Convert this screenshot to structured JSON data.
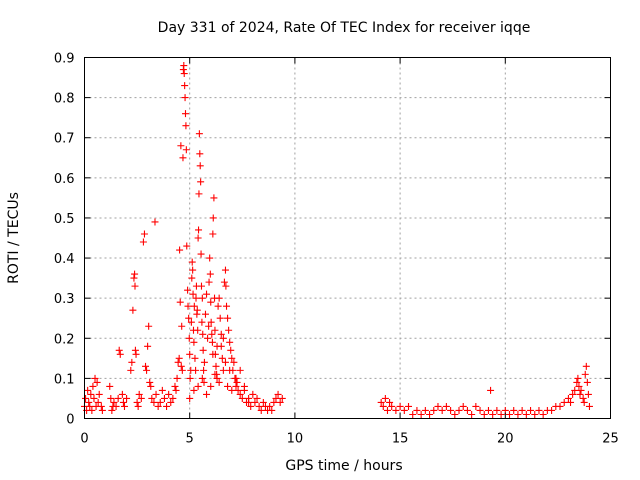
{
  "chart_data": {
    "type": "scatter",
    "title": "Day 331 of 2024, Rate Of TEC Index for receiver iqqe",
    "xlabel": "GPS time / hours",
    "ylabel": "ROTI / TECUs",
    "xlim": [
      0,
      25
    ],
    "ylim": [
      0,
      0.9
    ],
    "x_ticks": [
      0,
      5,
      10,
      15,
      20,
      25
    ],
    "x_tick_labels": [
      "0",
      "5",
      "10",
      "15",
      "20",
      "25"
    ],
    "y_ticks": [
      0,
      0.1,
      0.2,
      0.3,
      0.4,
      0.5,
      0.6,
      0.7,
      0.8,
      0.9
    ],
    "y_tick_labels": [
      "0",
      "0.1",
      "0.2",
      "0.3",
      "0.4",
      "0.5",
      "0.6",
      "0.7",
      "0.8",
      "0.9"
    ],
    "grid": true,
    "marker": "+",
    "color": "#ff0000",
    "series": [
      {
        "name": "ROTI",
        "points": [
          [
            0.0,
            0.03
          ],
          [
            0.05,
            0.05
          ],
          [
            0.1,
            0.02
          ],
          [
            0.15,
            0.07
          ],
          [
            0.2,
            0.04
          ],
          [
            0.25,
            0.03
          ],
          [
            0.3,
            0.06
          ],
          [
            0.35,
            0.02
          ],
          [
            0.4,
            0.08
          ],
          [
            0.45,
            0.05
          ],
          [
            0.5,
            0.1
          ],
          [
            0.55,
            0.03
          ],
          [
            0.6,
            0.09
          ],
          [
            0.65,
            0.04
          ],
          [
            0.7,
            0.06
          ],
          [
            0.8,
            0.03
          ],
          [
            0.85,
            0.02
          ],
          [
            1.2,
            0.08
          ],
          [
            1.25,
            0.05
          ],
          [
            1.3,
            0.02
          ],
          [
            1.35,
            0.03
          ],
          [
            1.4,
            0.04
          ],
          [
            1.5,
            0.03
          ],
          [
            1.6,
            0.05
          ],
          [
            1.65,
            0.17
          ],
          [
            1.7,
            0.16
          ],
          [
            1.8,
            0.06
          ],
          [
            1.85,
            0.04
          ],
          [
            1.9,
            0.03
          ],
          [
            2.0,
            0.05
          ],
          [
            2.2,
            0.12
          ],
          [
            2.25,
            0.14
          ],
          [
            2.3,
            0.27
          ],
          [
            2.35,
            0.35
          ],
          [
            2.38,
            0.36
          ],
          [
            2.4,
            0.33
          ],
          [
            2.42,
            0.17
          ],
          [
            2.45,
            0.16
          ],
          [
            2.5,
            0.04
          ],
          [
            2.55,
            0.03
          ],
          [
            2.6,
            0.06
          ],
          [
            2.7,
            0.05
          ],
          [
            2.8,
            0.44
          ],
          [
            2.85,
            0.46
          ],
          [
            2.9,
            0.13
          ],
          [
            2.95,
            0.12
          ],
          [
            3.0,
            0.18
          ],
          [
            3.05,
            0.23
          ],
          [
            3.1,
            0.09
          ],
          [
            3.15,
            0.08
          ],
          [
            3.2,
            0.05
          ],
          [
            3.3,
            0.04
          ],
          [
            3.35,
            0.49
          ],
          [
            3.4,
            0.06
          ],
          [
            3.5,
            0.03
          ],
          [
            3.6,
            0.04
          ],
          [
            3.7,
            0.07
          ],
          [
            3.8,
            0.05
          ],
          [
            3.9,
            0.03
          ],
          [
            4.0,
            0.06
          ],
          [
            4.1,
            0.04
          ],
          [
            4.2,
            0.05
          ],
          [
            4.3,
            0.08
          ],
          [
            4.35,
            0.07
          ],
          [
            4.4,
            0.1
          ],
          [
            4.45,
            0.14
          ],
          [
            4.5,
            0.15
          ],
          [
            4.52,
            0.42
          ],
          [
            4.55,
            0.29
          ],
          [
            4.58,
            0.68
          ],
          [
            4.6,
            0.13
          ],
          [
            4.62,
            0.23
          ],
          [
            4.65,
            0.12
          ],
          [
            4.68,
            0.65
          ],
          [
            4.7,
            0.87
          ],
          [
            4.72,
            0.88
          ],
          [
            4.74,
            0.86
          ],
          [
            4.76,
            0.83
          ],
          [
            4.78,
            0.8
          ],
          [
            4.8,
            0.76
          ],
          [
            4.82,
            0.73
          ],
          [
            4.84,
            0.67
          ],
          [
            4.86,
            0.43
          ],
          [
            4.9,
            0.32
          ],
          [
            4.92,
            0.28
          ],
          [
            4.95,
            0.25
          ],
          [
            4.98,
            0.2
          ],
          [
            5.0,
            0.16
          ],
          [
            5.02,
            0.1
          ],
          [
            5.05,
            0.12
          ],
          [
            5.08,
            0.24
          ],
          [
            5.1,
            0.35
          ],
          [
            5.12,
            0.39
          ],
          [
            5.14,
            0.37
          ],
          [
            5.16,
            0.31
          ],
          [
            5.18,
            0.22
          ],
          [
            5.2,
            0.19
          ],
          [
            5.22,
            0.28
          ],
          [
            5.25,
            0.15
          ],
          [
            5.28,
            0.12
          ],
          [
            5.3,
            0.3
          ],
          [
            5.32,
            0.33
          ],
          [
            5.34,
            0.26
          ],
          [
            5.36,
            0.27
          ],
          [
            5.38,
            0.22
          ],
          [
            5.4,
            0.45
          ],
          [
            5.42,
            0.47
          ],
          [
            5.44,
            0.56
          ],
          [
            5.46,
            0.71
          ],
          [
            5.48,
            0.66
          ],
          [
            5.5,
            0.63
          ],
          [
            5.52,
            0.59
          ],
          [
            5.54,
            0.41
          ],
          [
            5.56,
            0.33
          ],
          [
            5.58,
            0.24
          ],
          [
            5.6,
            0.3
          ],
          [
            5.62,
            0.21
          ],
          [
            5.64,
            0.17
          ],
          [
            5.66,
            0.12
          ],
          [
            5.68,
            0.09
          ],
          [
            5.7,
            0.14
          ],
          [
            5.75,
            0.26
          ],
          [
            5.8,
            0.31
          ],
          [
            5.85,
            0.2
          ],
          [
            5.9,
            0.23
          ],
          [
            5.92,
            0.34
          ],
          [
            5.95,
            0.4
          ],
          [
            5.98,
            0.36
          ],
          [
            6.0,
            0.29
          ],
          [
            6.02,
            0.24
          ],
          [
            6.05,
            0.21
          ],
          [
            6.08,
            0.19
          ],
          [
            6.1,
            0.46
          ],
          [
            6.12,
            0.5
          ],
          [
            6.15,
            0.55
          ],
          [
            6.18,
            0.3
          ],
          [
            6.2,
            0.22
          ],
          [
            6.22,
            0.16
          ],
          [
            6.25,
            0.13
          ],
          [
            6.28,
            0.11
          ],
          [
            6.3,
            0.1
          ],
          [
            6.35,
            0.28
          ],
          [
            6.4,
            0.3
          ],
          [
            6.45,
            0.25
          ],
          [
            6.5,
            0.18
          ],
          [
            6.55,
            0.15
          ],
          [
            6.6,
            0.2
          ],
          [
            6.65,
            0.34
          ],
          [
            6.7,
            0.37
          ],
          [
            6.72,
            0.33
          ],
          [
            6.75,
            0.28
          ],
          [
            6.8,
            0.25
          ],
          [
            6.85,
            0.22
          ],
          [
            6.9,
            0.19
          ],
          [
            6.95,
            0.17
          ],
          [
            7.0,
            0.15
          ],
          [
            7.05,
            0.12
          ],
          [
            7.1,
            0.14
          ],
          [
            7.15,
            0.1
          ],
          [
            7.2,
            0.08
          ],
          [
            7.25,
            0.09
          ],
          [
            7.3,
            0.07
          ],
          [
            7.4,
            0.06
          ],
          [
            7.5,
            0.05
          ],
          [
            7.6,
            0.07
          ],
          [
            7.7,
            0.04
          ],
          [
            7.8,
            0.05
          ],
          [
            7.9,
            0.03
          ],
          [
            8.0,
            0.06
          ],
          [
            8.1,
            0.04
          ],
          [
            8.2,
            0.05
          ],
          [
            8.3,
            0.03
          ],
          [
            8.4,
            0.02
          ],
          [
            8.5,
            0.04
          ],
          [
            8.6,
            0.03
          ],
          [
            8.7,
            0.02
          ],
          [
            8.8,
            0.03
          ],
          [
            8.9,
            0.02
          ],
          [
            9.0,
            0.04
          ],
          [
            9.1,
            0.05
          ],
          [
            9.2,
            0.06
          ],
          [
            9.3,
            0.04
          ],
          [
            9.4,
            0.05
          ],
          [
            5.0,
            0.05
          ],
          [
            5.2,
            0.07
          ],
          [
            5.4,
            0.08
          ],
          [
            5.6,
            0.1
          ],
          [
            5.8,
            0.06
          ],
          [
            6.0,
            0.08
          ],
          [
            6.2,
            0.11
          ],
          [
            6.4,
            0.09
          ],
          [
            6.6,
            0.12
          ],
          [
            6.8,
            0.08
          ],
          [
            7.0,
            0.07
          ],
          [
            7.2,
            0.1
          ],
          [
            7.4,
            0.12
          ],
          [
            7.6,
            0.08
          ],
          [
            7.8,
            0.04
          ],
          [
            6.1,
            0.16
          ],
          [
            6.3,
            0.18
          ],
          [
            6.5,
            0.21
          ],
          [
            6.7,
            0.14
          ],
          [
            6.9,
            0.12
          ],
          [
            14.1,
            0.04
          ],
          [
            14.2,
            0.03
          ],
          [
            14.3,
            0.05
          ],
          [
            14.4,
            0.02
          ],
          [
            14.5,
            0.04
          ],
          [
            14.6,
            0.03
          ],
          [
            14.8,
            0.02
          ],
          [
            15.0,
            0.03
          ],
          [
            15.2,
            0.02
          ],
          [
            15.4,
            0.03
          ],
          [
            15.6,
            0.01
          ],
          [
            15.8,
            0.02
          ],
          [
            16.0,
            0.01
          ],
          [
            16.2,
            0.02
          ],
          [
            16.4,
            0.01
          ],
          [
            16.6,
            0.02
          ],
          [
            16.8,
            0.03
          ],
          [
            17.0,
            0.02
          ],
          [
            17.2,
            0.03
          ],
          [
            17.4,
            0.02
          ],
          [
            17.6,
            0.01
          ],
          [
            17.8,
            0.02
          ],
          [
            18.0,
            0.03
          ],
          [
            18.2,
            0.02
          ],
          [
            18.4,
            0.01
          ],
          [
            18.6,
            0.03
          ],
          [
            18.8,
            0.02
          ],
          [
            19.0,
            0.01
          ],
          [
            19.2,
            0.02
          ],
          [
            19.3,
            0.07
          ],
          [
            19.4,
            0.01
          ],
          [
            19.6,
            0.02
          ],
          [
            19.8,
            0.01
          ],
          [
            20.0,
            0.02
          ],
          [
            20.2,
            0.01
          ],
          [
            20.4,
            0.02
          ],
          [
            20.6,
            0.01
          ],
          [
            20.8,
            0.02
          ],
          [
            21.0,
            0.01
          ],
          [
            21.2,
            0.02
          ],
          [
            21.4,
            0.01
          ],
          [
            21.6,
            0.02
          ],
          [
            21.8,
            0.01
          ],
          [
            22.0,
            0.02
          ],
          [
            22.2,
            0.02
          ],
          [
            22.4,
            0.03
          ],
          [
            22.6,
            0.03
          ],
          [
            22.8,
            0.04
          ],
          [
            23.0,
            0.05
          ],
          [
            23.1,
            0.04
          ],
          [
            23.2,
            0.06
          ],
          [
            23.3,
            0.07
          ],
          [
            23.4,
            0.09
          ],
          [
            23.45,
            0.1
          ],
          [
            23.5,
            0.08
          ],
          [
            23.55,
            0.06
          ],
          [
            23.6,
            0.07
          ],
          [
            23.7,
            0.05
          ],
          [
            23.75,
            0.04
          ],
          [
            23.8,
            0.11
          ],
          [
            23.85,
            0.13
          ],
          [
            23.9,
            0.09
          ],
          [
            23.95,
            0.06
          ],
          [
            24.0,
            0.03
          ]
        ]
      }
    ]
  }
}
